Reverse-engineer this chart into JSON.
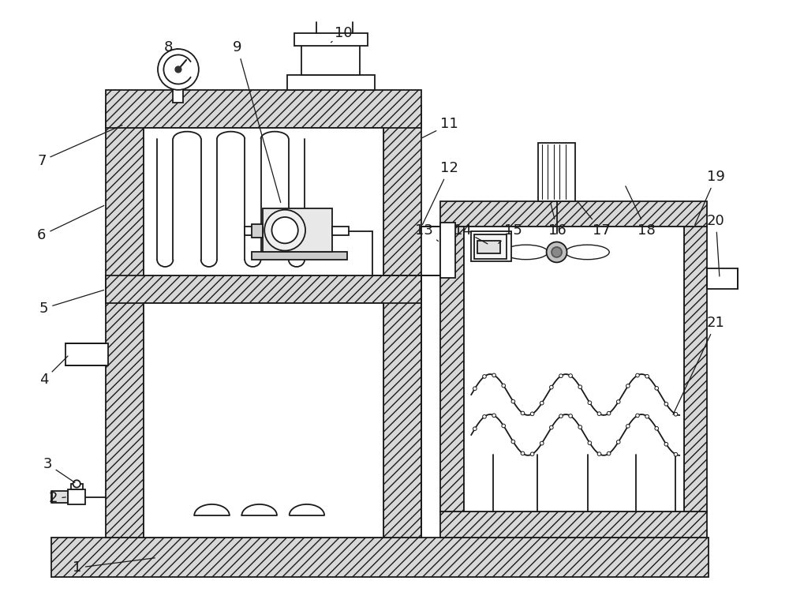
{
  "bg_color": "#ffffff",
  "line_color": "#1a1a1a",
  "label_color": "#1a1a1a",
  "label_fontsize": 13,
  "hatch_density": "///",
  "hatch_color": "#888888"
}
